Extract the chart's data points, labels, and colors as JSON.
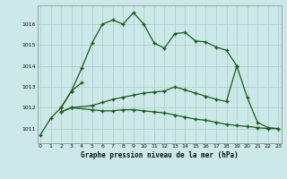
{
  "title": "Graphe pression niveau de la mer (hPa)",
  "bg_color": "#cce8e8",
  "line_color": "#1a5c1a",
  "x_ticks": [
    0,
    1,
    2,
    3,
    4,
    5,
    6,
    7,
    8,
    9,
    10,
    11,
    12,
    13,
    14,
    15,
    16,
    17,
    18,
    19,
    20,
    21,
    22,
    23
  ],
  "y_ticks": [
    1011,
    1012,
    1013,
    1014,
    1015,
    1016
  ],
  "ylim": [
    1010.3,
    1016.9
  ],
  "xlim": [
    -0.3,
    23.3
  ],
  "series1": [
    1010.7,
    1011.5,
    1012.0,
    1012.8,
    1013.9,
    1015.1,
    1016.0,
    1016.2,
    1016.0,
    1016.55,
    1016.0,
    1015.1,
    1014.85,
    1015.55,
    1015.6,
    1015.2,
    1015.15,
    1014.9,
    1014.75,
    1014.0,
    null,
    null,
    null,
    null
  ],
  "series2": [
    null,
    null,
    1012.0,
    1012.8,
    1013.2,
    null,
    null,
    null,
    null,
    null,
    null,
    null,
    null,
    null,
    null,
    null,
    null,
    null,
    null,
    null,
    null,
    null,
    null,
    null
  ],
  "series3": [
    null,
    null,
    1011.8,
    1012.0,
    null,
    1012.1,
    1012.25,
    1012.4,
    1012.5,
    1012.6,
    1012.7,
    1012.75,
    1012.8,
    1013.0,
    1012.85,
    1012.7,
    1012.55,
    1012.4,
    1012.3,
    1014.0,
    1012.5,
    1011.3,
    1011.05,
    1011.0
  ],
  "series4": [
    null,
    null,
    1011.8,
    1012.0,
    null,
    1011.9,
    1011.85,
    1011.85,
    1011.9,
    1011.9,
    1011.85,
    1011.8,
    1011.75,
    1011.65,
    1011.55,
    1011.45,
    1011.4,
    1011.3,
    1011.2,
    1011.15,
    1011.1,
    1011.05,
    1011.0,
    1011.0
  ]
}
